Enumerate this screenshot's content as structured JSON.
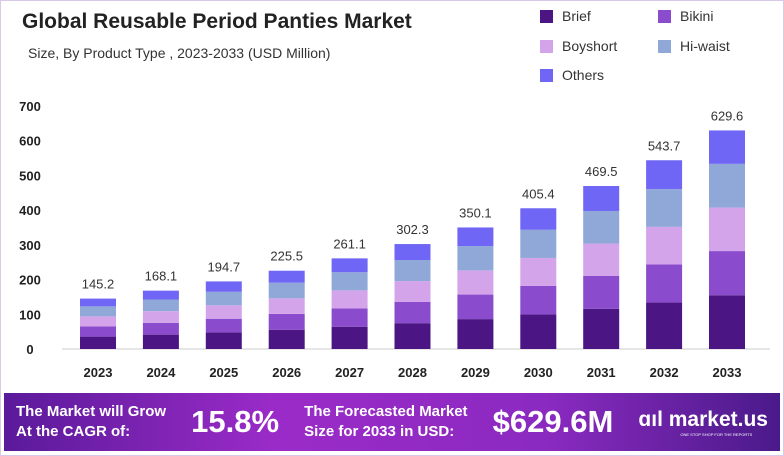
{
  "chart_data": {
    "type": "bar",
    "stacked": true,
    "title": "Global Reusable Period Panties Market",
    "subtitle": "Size, By Product Type , 2023-2033 (USD Million)",
    "categories": [
      "2023",
      "2024",
      "2025",
      "2026",
      "2027",
      "2028",
      "2029",
      "2030",
      "2031",
      "2032",
      "2033"
    ],
    "totals": [
      145.2,
      168.1,
      194.7,
      225.5,
      261.1,
      302.3,
      350.1,
      405.4,
      469.5,
      543.7,
      629.6
    ],
    "total_labels": [
      "145.2",
      "168.1",
      "194.7",
      "225.5",
      "261.1",
      "302.3",
      "350.1",
      "405.4",
      "469.5",
      "543.7",
      "629.6"
    ],
    "series": [
      {
        "name": "Brief",
        "color": "#4b1684",
        "values": [
          35.7,
          41.4,
          47.9,
          55.5,
          64.2,
          74.4,
          86.1,
          99.7,
          115.5,
          133.8,
          154.9
        ]
      },
      {
        "name": "Bikini",
        "color": "#8a4ccc",
        "values": [
          29.3,
          34.0,
          39.3,
          45.6,
          52.7,
          61.1,
          70.7,
          81.9,
          94.8,
          109.8,
          127.2
        ]
      },
      {
        "name": "Boyshort",
        "color": "#d4a4ea",
        "values": [
          28.9,
          33.5,
          38.7,
          44.9,
          52.0,
          60.2,
          69.7,
          80.7,
          93.4,
          108.2,
          125.3
        ]
      },
      {
        "name": "Hi-waist",
        "color": "#8fa8d8",
        "values": [
          29.0,
          33.6,
          38.9,
          45.1,
          52.2,
          60.5,
          70.0,
          81.1,
          93.9,
          108.7,
          125.9
        ]
      },
      {
        "name": "Others",
        "color": "#6f66f5",
        "values": [
          22.3,
          25.6,
          29.9,
          34.4,
          40.0,
          46.1,
          53.6,
          62.0,
          71.9,
          83.2,
          96.3
        ]
      }
    ],
    "ylim": [
      0,
      700
    ],
    "yticks": [
      "0",
      "100",
      "200",
      "300",
      "400",
      "500",
      "600",
      "700"
    ],
    "grid": false,
    "legend_position": "top-right"
  },
  "footer": {
    "cagr_label_1": "The Market will Grow",
    "cagr_label_2": "At the CAGR of:",
    "cagr_value": "15.8%",
    "forecast_label_1": "The Forecasted Market",
    "forecast_label_2": "Size for 2033 in USD:",
    "forecast_value": "$629.6M",
    "logo_text": "market.us",
    "logo_tagline": "ONE STOP SHOP FOR THE REPORTS"
  }
}
